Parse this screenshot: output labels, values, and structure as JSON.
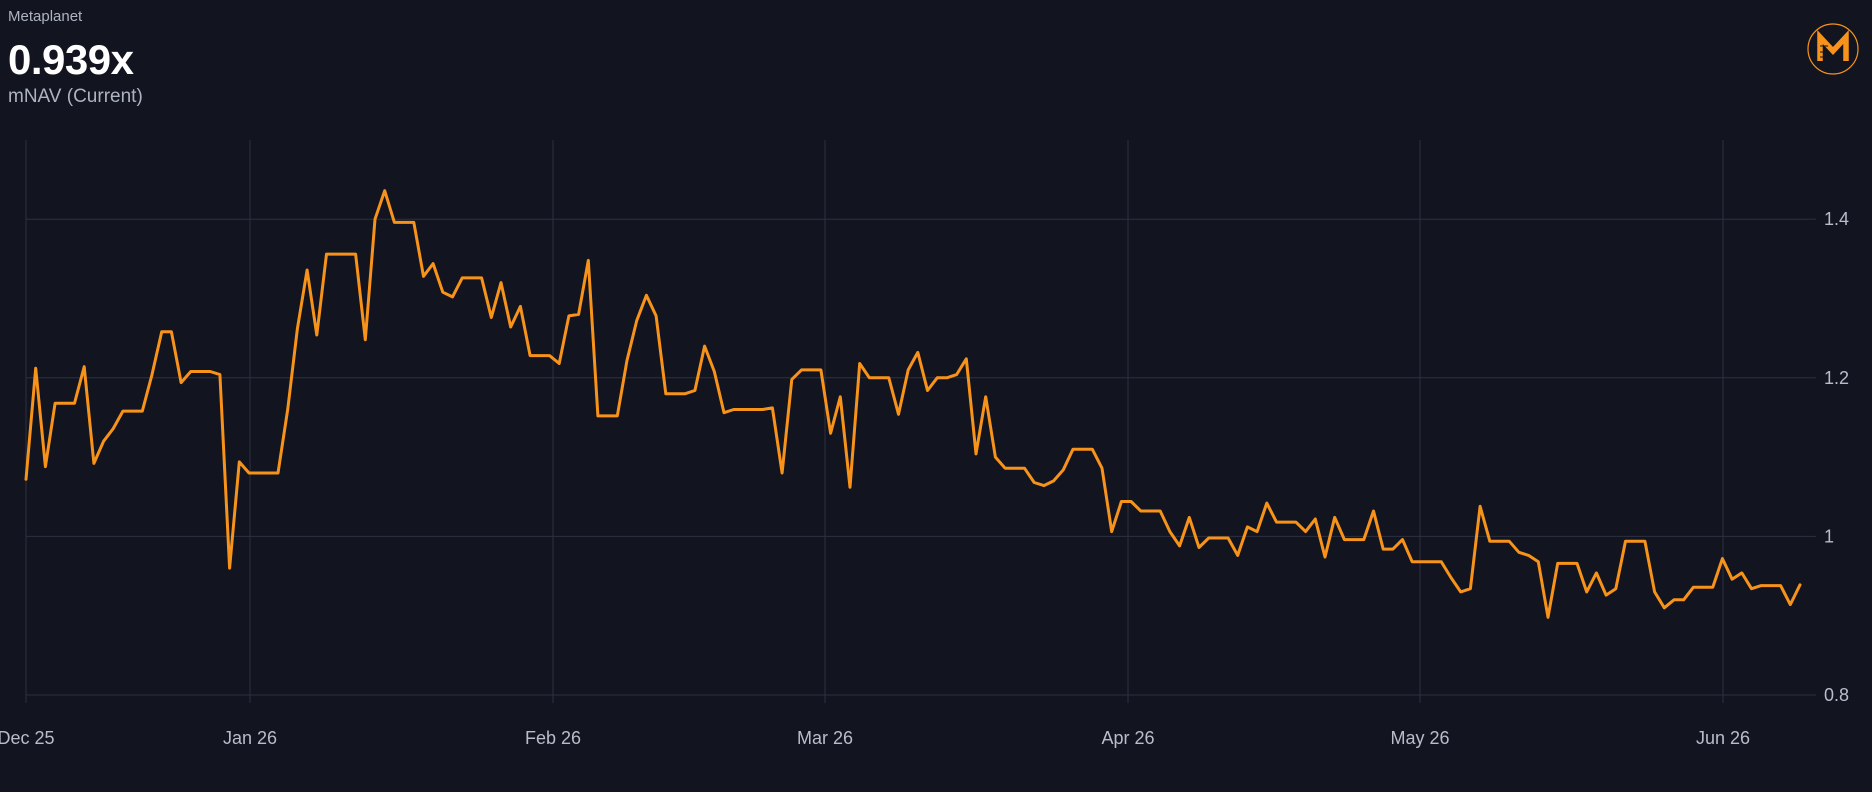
{
  "header": {
    "company": "Metaplanet",
    "value": "0.939x",
    "metric": "mNAV (Current)"
  },
  "logo": {
    "icon": "metaplanet-m-logo-icon",
    "color": "#f7931a"
  },
  "colors": {
    "background": "#121420",
    "grid": "#2d3040",
    "line": "#f7931a",
    "tick_text": "#b9bdcb"
  },
  "chart_data": {
    "type": "line",
    "x_tick_labels": [
      "Dec 25",
      "Jan 26",
      "Feb 26",
      "Mar 26",
      "Apr 26",
      "May 26",
      "Jun 26"
    ],
    "y_tick_labels": [
      "1.4",
      "1.2",
      "1",
      "0.8"
    ],
    "y_ticks": [
      1.4,
      1.2,
      1.0,
      0.8
    ],
    "ylim": [
      0.8,
      1.5
    ],
    "grid": true,
    "series": [
      {
        "values": [
          1.072,
          1.212,
          1.088,
          1.168,
          1.168,
          1.168,
          1.214,
          1.092,
          1.12,
          1.136,
          1.158,
          1.158,
          1.158,
          1.204,
          1.258,
          1.258,
          1.194,
          1.208,
          1.208,
          1.208,
          1.204,
          0.96,
          1.094,
          1.08,
          1.08,
          1.08,
          1.08,
          1.16,
          1.262,
          1.336,
          1.254,
          1.356,
          1.356,
          1.356,
          1.356,
          1.248,
          1.4,
          1.436,
          1.396,
          1.396,
          1.396,
          1.328,
          1.344,
          1.308,
          1.302,
          1.326,
          1.326,
          1.326,
          1.276,
          1.32,
          1.264,
          1.29,
          1.228,
          1.228,
          1.228,
          1.218,
          1.278,
          1.28,
          1.348,
          1.152,
          1.152,
          1.152,
          1.222,
          1.272,
          1.304,
          1.278,
          1.18,
          1.18,
          1.18,
          1.184,
          1.24,
          1.208,
          1.156,
          1.16,
          1.16,
          1.16,
          1.16,
          1.162,
          1.08,
          1.198,
          1.21,
          1.21,
          1.21,
          1.13,
          1.176,
          1.062,
          1.218,
          1.2,
          1.2,
          1.2,
          1.154,
          1.21,
          1.232,
          1.184,
          1.2,
          1.2,
          1.204,
          1.224,
          1.104,
          1.176,
          1.1,
          1.086,
          1.086,
          1.086,
          1.068,
          1.064,
          1.07,
          1.084,
          1.11,
          1.11,
          1.11,
          1.086,
          1.006,
          1.044,
          1.044,
          1.032,
          1.032,
          1.032,
          1.006,
          0.988,
          1.024,
          0.986,
          0.998,
          0.998,
          0.998,
          0.976,
          1.012,
          1.006,
          1.042,
          1.018,
          1.018,
          1.018,
          1.006,
          1.022,
          0.974,
          1.024,
          0.996,
          0.996,
          0.996,
          1.032,
          0.984,
          0.984,
          0.996,
          0.968,
          0.968,
          0.968,
          0.968,
          0.948,
          0.93,
          0.934,
          1.038,
          0.994,
          0.994,
          0.994,
          0.98,
          0.976,
          0.968,
          0.898,
          0.966,
          0.966,
          0.966,
          0.93,
          0.954,
          0.926,
          0.934,
          0.994,
          0.994,
          0.994,
          0.93,
          0.91,
          0.92,
          0.92,
          0.936,
          0.936,
          0.936,
          0.972,
          0.946,
          0.954,
          0.934,
          0.938,
          0.938,
          0.938,
          0.914,
          0.939
        ]
      }
    ]
  }
}
